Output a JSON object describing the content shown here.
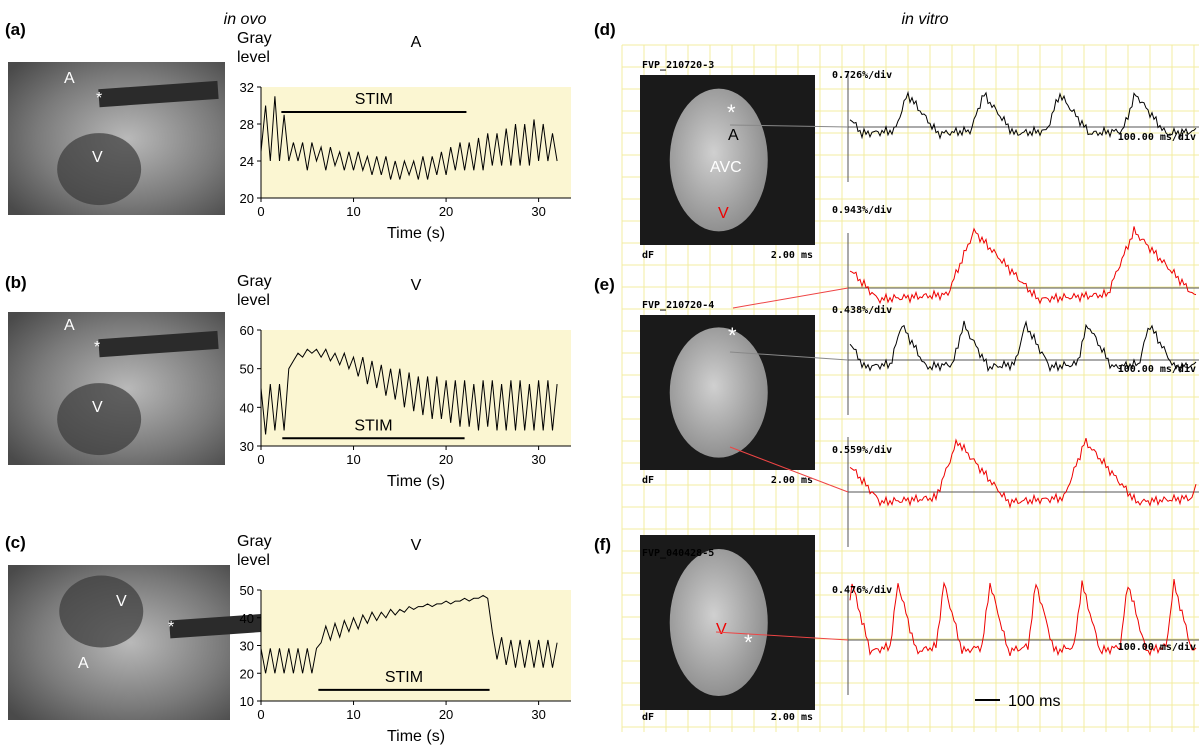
{
  "in_ovo": {
    "heading": "in ovo"
  },
  "chart_data": [
    {
      "type": "line",
      "panel": "(a)",
      "title": "A",
      "y_label": "Gray level",
      "x_label": "Time (s)",
      "image_labels": [
        "A",
        "*",
        "V"
      ],
      "x": [
        0,
        0.5,
        1,
        1.5,
        2,
        2.5,
        3,
        3.5,
        4,
        4.5,
        5,
        5.5,
        6,
        6.5,
        7,
        7.5,
        8,
        8.5,
        9,
        9.5,
        10,
        10.5,
        11,
        11.5,
        12,
        12.5,
        13,
        13.5,
        14,
        14.5,
        15,
        15.5,
        16,
        16.5,
        17,
        17.5,
        18,
        18.5,
        19,
        19.5,
        20,
        20.5,
        21,
        21.5,
        22,
        22.5,
        23,
        23.5,
        24,
        24.5,
        25,
        25.5,
        26,
        26.5,
        27,
        27.5,
        28,
        28.5,
        29,
        29.5,
        30,
        30.5,
        31,
        31.5,
        32
      ],
      "series": [
        {
          "color": "#000000",
          "values": [
            25,
            30,
            24,
            31,
            24,
            29,
            24,
            26,
            24,
            26,
            23,
            26,
            24,
            25.5,
            23,
            25.5,
            23.5,
            25,
            23,
            25,
            23,
            25,
            23,
            24.5,
            22.5,
            24.5,
            22.5,
            24.5,
            22,
            24,
            22,
            24,
            22.5,
            24,
            22,
            24.5,
            22,
            24.5,
            22.5,
            25,
            22.5,
            25.5,
            23,
            26,
            23,
            26,
            23,
            26.5,
            23,
            27,
            23.5,
            27,
            23.5,
            27.5,
            23.5,
            28,
            23.5,
            28,
            23.5,
            28.5,
            24,
            28,
            24,
            27,
            24
          ]
        }
      ],
      "xlim": [
        0,
        33.5
      ],
      "ylim": [
        20,
        32
      ],
      "xticks": [
        0,
        10,
        20,
        30
      ],
      "yticks": [
        20,
        24,
        28,
        32
      ],
      "stim": {
        "label": "STIM",
        "start": 2.2,
        "end": 22.2,
        "level": 29.3
      }
    },
    {
      "type": "line",
      "panel": "(b)",
      "title": "V",
      "y_label": "Gray level",
      "x_label": "Time (s)",
      "image_labels": [
        "A",
        "*",
        "V"
      ],
      "x": [
        0,
        0.5,
        1,
        1.5,
        2,
        2.5,
        3,
        3.5,
        4,
        4.5,
        5,
        5.5,
        6,
        6.5,
        7,
        7.5,
        8,
        8.5,
        9,
        9.5,
        10,
        10.5,
        11,
        11.5,
        12,
        12.5,
        13,
        13.5,
        14,
        14.5,
        15,
        15.5,
        16,
        16.5,
        17,
        17.5,
        18,
        18.5,
        19,
        19.5,
        20,
        20.5,
        21,
        21.5,
        22,
        22.5,
        23,
        23.5,
        24,
        24.5,
        25,
        25.5,
        26,
        26.5,
        27,
        27.5,
        28,
        28.5,
        29,
        29.5,
        30,
        30.5,
        31,
        31.5,
        32
      ],
      "series": [
        {
          "color": "#000000",
          "values": [
            45,
            33,
            46,
            34,
            46,
            34,
            50,
            52,
            54,
            53,
            55,
            54,
            55,
            53,
            55,
            52,
            54,
            51,
            54,
            50,
            53,
            48,
            53,
            46,
            52,
            45,
            51,
            43,
            50,
            42,
            50,
            40,
            49,
            39,
            48,
            38,
            48,
            37,
            48,
            37,
            47,
            36,
            47,
            35,
            47,
            35,
            46,
            34,
            47,
            35,
            47,
            34,
            46,
            34,
            47,
            34,
            47,
            34,
            46,
            34,
            47,
            34,
            47,
            34,
            46
          ]
        }
      ],
      "xlim": [
        0,
        33.5
      ],
      "ylim": [
        30,
        60
      ],
      "xticks": [
        0,
        10,
        20,
        30
      ],
      "yticks": [
        30,
        40,
        50,
        60
      ],
      "stim": {
        "label": "STIM",
        "start": 2.3,
        "end": 22,
        "level": 32
      }
    },
    {
      "type": "line",
      "panel": "(c)",
      "title": "V",
      "y_label": "Gray level",
      "x_label": "Time (s)",
      "image_labels": [
        "V",
        "*",
        "A"
      ],
      "x": [
        0,
        0.5,
        1,
        1.5,
        2,
        2.5,
        3,
        3.5,
        4,
        4.5,
        5,
        5.5,
        6,
        6.5,
        7,
        7.5,
        8,
        8.5,
        9,
        9.5,
        10,
        10.5,
        11,
        11.5,
        12,
        12.5,
        13,
        13.5,
        14,
        14.5,
        15,
        15.5,
        16,
        16.5,
        17,
        17.5,
        18,
        18.5,
        19,
        19.5,
        20,
        20.5,
        21,
        21.5,
        22,
        22.5,
        23,
        23.5,
        24,
        24.5,
        25,
        25.5,
        26,
        26.5,
        27,
        27.5,
        28,
        28.5,
        29,
        29.5,
        30,
        30.5,
        31,
        31.5,
        32
      ],
      "series": [
        {
          "color": "#000000",
          "values": [
            29,
            20,
            29,
            20,
            29,
            20,
            29,
            20,
            29,
            20,
            29,
            20,
            29,
            31,
            37,
            32,
            38,
            33,
            39,
            35,
            40,
            36,
            41,
            38,
            42,
            39,
            42,
            40,
            43,
            41,
            43,
            42,
            44,
            43,
            44,
            44,
            45,
            44,
            45,
            45,
            46,
            45,
            46,
            46,
            47,
            46,
            47,
            47,
            48,
            47,
            35,
            25,
            33,
            23,
            32,
            22,
            32,
            22,
            32,
            22,
            32,
            22,
            32,
            22,
            31
          ]
        }
      ],
      "xlim": [
        0,
        33.5
      ],
      "ylim": [
        10,
        50
      ],
      "xticks": [
        0,
        10,
        20,
        30
      ],
      "yticks": [
        10,
        20,
        30,
        40,
        50
      ],
      "stim": {
        "label": "STIM",
        "start": 6.2,
        "end": 24.7,
        "level": 14
      }
    }
  ],
  "in_vitro": {
    "heading": "in vitro",
    "panels": [
      {
        "label": "(d)",
        "file": "FVP_210720-3",
        "dF": "dF",
        "frame": "2.00 ms",
        "image_labels": [
          "*",
          "A",
          "AVC",
          "V"
        ],
        "scales": [
          "0.726%/div",
          "0.943%/div"
        ],
        "time_scale": "100.00 ms/div"
      },
      {
        "label": "(e)",
        "file": "FVP_210720-4",
        "dF": "dF",
        "frame": "2.00 ms",
        "image_labels": [
          "*"
        ],
        "scales": [
          "0.438%/div",
          "0.559%/div"
        ],
        "time_scale": "100.00 ms/div"
      },
      {
        "label": "(f)",
        "file": "FVP_040428-5",
        "dF": "dF",
        "frame": "2.00 ms",
        "image_labels": [
          "V",
          "*"
        ],
        "scales": [
          "0.476%/div"
        ],
        "time_scale": "100.00 ms/div"
      }
    ],
    "scale_bar": "100 ms"
  }
}
